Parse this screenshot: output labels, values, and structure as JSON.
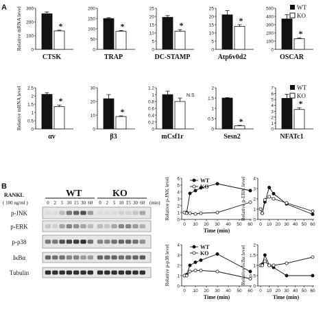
{
  "panels": {
    "a_label": "A",
    "b_label": "B"
  },
  "legend": {
    "wt": "WT",
    "ko": "KO"
  },
  "colors": {
    "wt_fill": "#111111",
    "ko_fill": "#ffffff",
    "stroke": "#111111"
  },
  "blot": {
    "rankl_label": "RANKL",
    "rankl_conc": "( 100 ng/ml )",
    "group_wt": "WT",
    "group_ko": "KO",
    "timepoints": [
      "0",
      "2",
      "5",
      "10",
      "15",
      "30",
      "60",
      "0",
      "2",
      "5",
      "10",
      "15",
      "30",
      "60"
    ],
    "unit": "(min)",
    "rows": [
      "p-JNK",
      "p-ERK",
      "p-p38",
      "IκBα",
      "Tubulin"
    ]
  },
  "chart_data": [
    {
      "type": "bar",
      "title": "CTSK",
      "ylabel": "Relative mRNA level",
      "categories": [
        "WT",
        "KO"
      ],
      "values": [
        260,
        135
      ],
      "errors": [
        12,
        5
      ],
      "ylim": [
        0,
        300
      ],
      "yticks": [
        0,
        100,
        200,
        300
      ],
      "sig": "*"
    },
    {
      "type": "bar",
      "title": "TRAP",
      "ylabel": "",
      "categories": [
        "WT",
        "KO"
      ],
      "values": [
        150,
        88
      ],
      "errors": [
        4,
        4
      ],
      "ylim": [
        0,
        200
      ],
      "yticks": [
        0,
        50,
        100,
        150,
        200
      ],
      "sig": "*"
    },
    {
      "type": "bar",
      "title": "DC-STAMP",
      "ylabel": "",
      "categories": [
        "WT",
        "KO"
      ],
      "values": [
        19.5,
        11
      ],
      "errors": [
        1,
        1
      ],
      "ylim": [
        0,
        25
      ],
      "yticks": [
        0,
        5,
        10,
        15,
        20,
        25
      ],
      "sig": "*"
    },
    {
      "type": "bar",
      "title": "Atp6v0d2",
      "ylabel": "",
      "categories": [
        "WT",
        "KO"
      ],
      "values": [
        21,
        14
      ],
      "errors": [
        2.5,
        1
      ],
      "ylim": [
        0,
        25
      ],
      "yticks": [
        0,
        5,
        10,
        15,
        20,
        25
      ],
      "sig": "*"
    },
    {
      "type": "bar",
      "title": "OSCAR",
      "ylabel": "",
      "categories": [
        "WT",
        "KO"
      ],
      "values": [
        370,
        130
      ],
      "errors": [
        50,
        10
      ],
      "ylim": [
        0,
        500
      ],
      "yticks": [
        0,
        100,
        200,
        300,
        400,
        500
      ],
      "sig": "*"
    },
    {
      "type": "bar",
      "title": "αv",
      "ylabel": "Relative mRNA level",
      "categories": [
        "WT",
        "KO"
      ],
      "values": [
        2.1,
        1.35
      ],
      "errors": [
        0.1,
        0.1
      ],
      "ylim": [
        0,
        2.5
      ],
      "yticks": [
        0,
        0.5,
        1,
        1.5,
        2,
        2.5
      ],
      "sig": "*"
    },
    {
      "type": "bar",
      "title": "β3",
      "ylabel": "",
      "categories": [
        "WT",
        "KO"
      ],
      "values": [
        22,
        9
      ],
      "errors": [
        3,
        0.5
      ],
      "ylim": [
        0,
        30
      ],
      "yticks": [
        0,
        10,
        20,
        30
      ],
      "sig": "*"
    },
    {
      "type": "bar",
      "title": "mCsf1r",
      "ylabel": "",
      "categories": [
        "WT",
        "KO"
      ],
      "values": [
        1.0,
        0.8
      ],
      "errors": [
        0.1,
        0.1
      ],
      "ylim": [
        0,
        1.2
      ],
      "yticks": [
        0,
        0.2,
        0.4,
        0.6,
        0.8,
        1,
        1.2
      ],
      "sig": "N.S"
    },
    {
      "type": "bar",
      "title": "Sesn2",
      "ylabel": "",
      "categories": [
        "WT",
        "KO"
      ],
      "values": [
        1.5,
        0.15
      ],
      "errors": [
        0.02,
        0.02
      ],
      "ylim": [
        0,
        2
      ],
      "yticks": [
        0,
        0.5,
        1,
        1.5,
        2
      ],
      "sig": "*"
    },
    {
      "type": "bar",
      "title": "NFATc1",
      "ylabel": "",
      "categories": [
        "WT",
        "KO"
      ],
      "values": [
        5.2,
        3.3
      ],
      "errors": [
        0.7,
        0.3
      ],
      "ylim": [
        0,
        7
      ],
      "yticks": [
        0,
        1,
        2,
        3,
        4,
        5,
        6,
        7
      ],
      "sig": "*"
    },
    {
      "type": "line",
      "title": "",
      "ylabel": "Relative p-JNK level",
      "xlabel": "Time (min)",
      "x": [
        0,
        2,
        5,
        10,
        15,
        30,
        60
      ],
      "ylim": [
        0,
        6
      ],
      "yticks": [
        0,
        1,
        2,
        3,
        4,
        5,
        6
      ],
      "xticks": [
        0,
        10,
        20,
        30,
        40,
        50,
        60
      ],
      "series": [
        {
          "name": "WT",
          "values": [
            1,
            1,
            3.8,
            4.2,
            4.6,
            5.2,
            4.2
          ]
        },
        {
          "name": "KO",
          "values": [
            1,
            0.9,
            0.9,
            0.8,
            0.9,
            1,
            2.5
          ]
        }
      ]
    },
    {
      "type": "line",
      "title": "",
      "ylabel": "Relative p-ERK level",
      "xlabel": "",
      "x": [
        0,
        2,
        5,
        10,
        15,
        30,
        60
      ],
      "ylim": [
        0,
        4
      ],
      "yticks": [
        0,
        1,
        2,
        3,
        4
      ],
      "xticks": [
        0,
        10,
        20,
        30,
        40,
        50,
        60
      ],
      "series": [
        {
          "name": "WT",
          "values": [
            1,
            0.6,
            1.7,
            3.1,
            2.5,
            1.5,
            0.5
          ]
        },
        {
          "name": "KO",
          "values": [
            1,
            0.6,
            1.9,
            2.2,
            2.0,
            1.6,
            0.8
          ]
        }
      ]
    },
    {
      "type": "line",
      "title": "",
      "ylabel": "Relative p-p38 level",
      "xlabel": "Time (min)",
      "x": [
        0,
        2,
        5,
        10,
        15,
        30,
        60
      ],
      "ylim": [
        0,
        4
      ],
      "yticks": [
        0,
        1,
        2,
        3,
        4
      ],
      "xticks": [
        0,
        10,
        20,
        30,
        40,
        50,
        60
      ],
      "series": [
        {
          "name": "WT",
          "values": [
            1,
            1.1,
            2.0,
            2.3,
            2.5,
            3.1,
            1.4
          ]
        },
        {
          "name": "KO",
          "values": [
            1,
            1.0,
            1.4,
            1.5,
            1.5,
            1.4,
            0.7
          ]
        }
      ]
    },
    {
      "type": "line",
      "title": "",
      "ylabel": "Relative IκBα level",
      "xlabel": "Time (min)",
      "x": [
        0,
        2,
        5,
        10,
        15,
        30,
        60
      ],
      "ylim": [
        0,
        2
      ],
      "yticks": [
        0,
        0.5,
        1,
        1.5,
        2
      ],
      "xticks": [
        0,
        10,
        20,
        30,
        40,
        50,
        60
      ],
      "series": [
        {
          "name": "WT",
          "values": [
            1,
            1.05,
            1.5,
            1.0,
            0.9,
            0.5,
            0.5
          ]
        },
        {
          "name": "KO",
          "values": [
            1,
            1.0,
            1.2,
            1.0,
            1.0,
            1.1,
            1.4
          ]
        }
      ]
    }
  ]
}
